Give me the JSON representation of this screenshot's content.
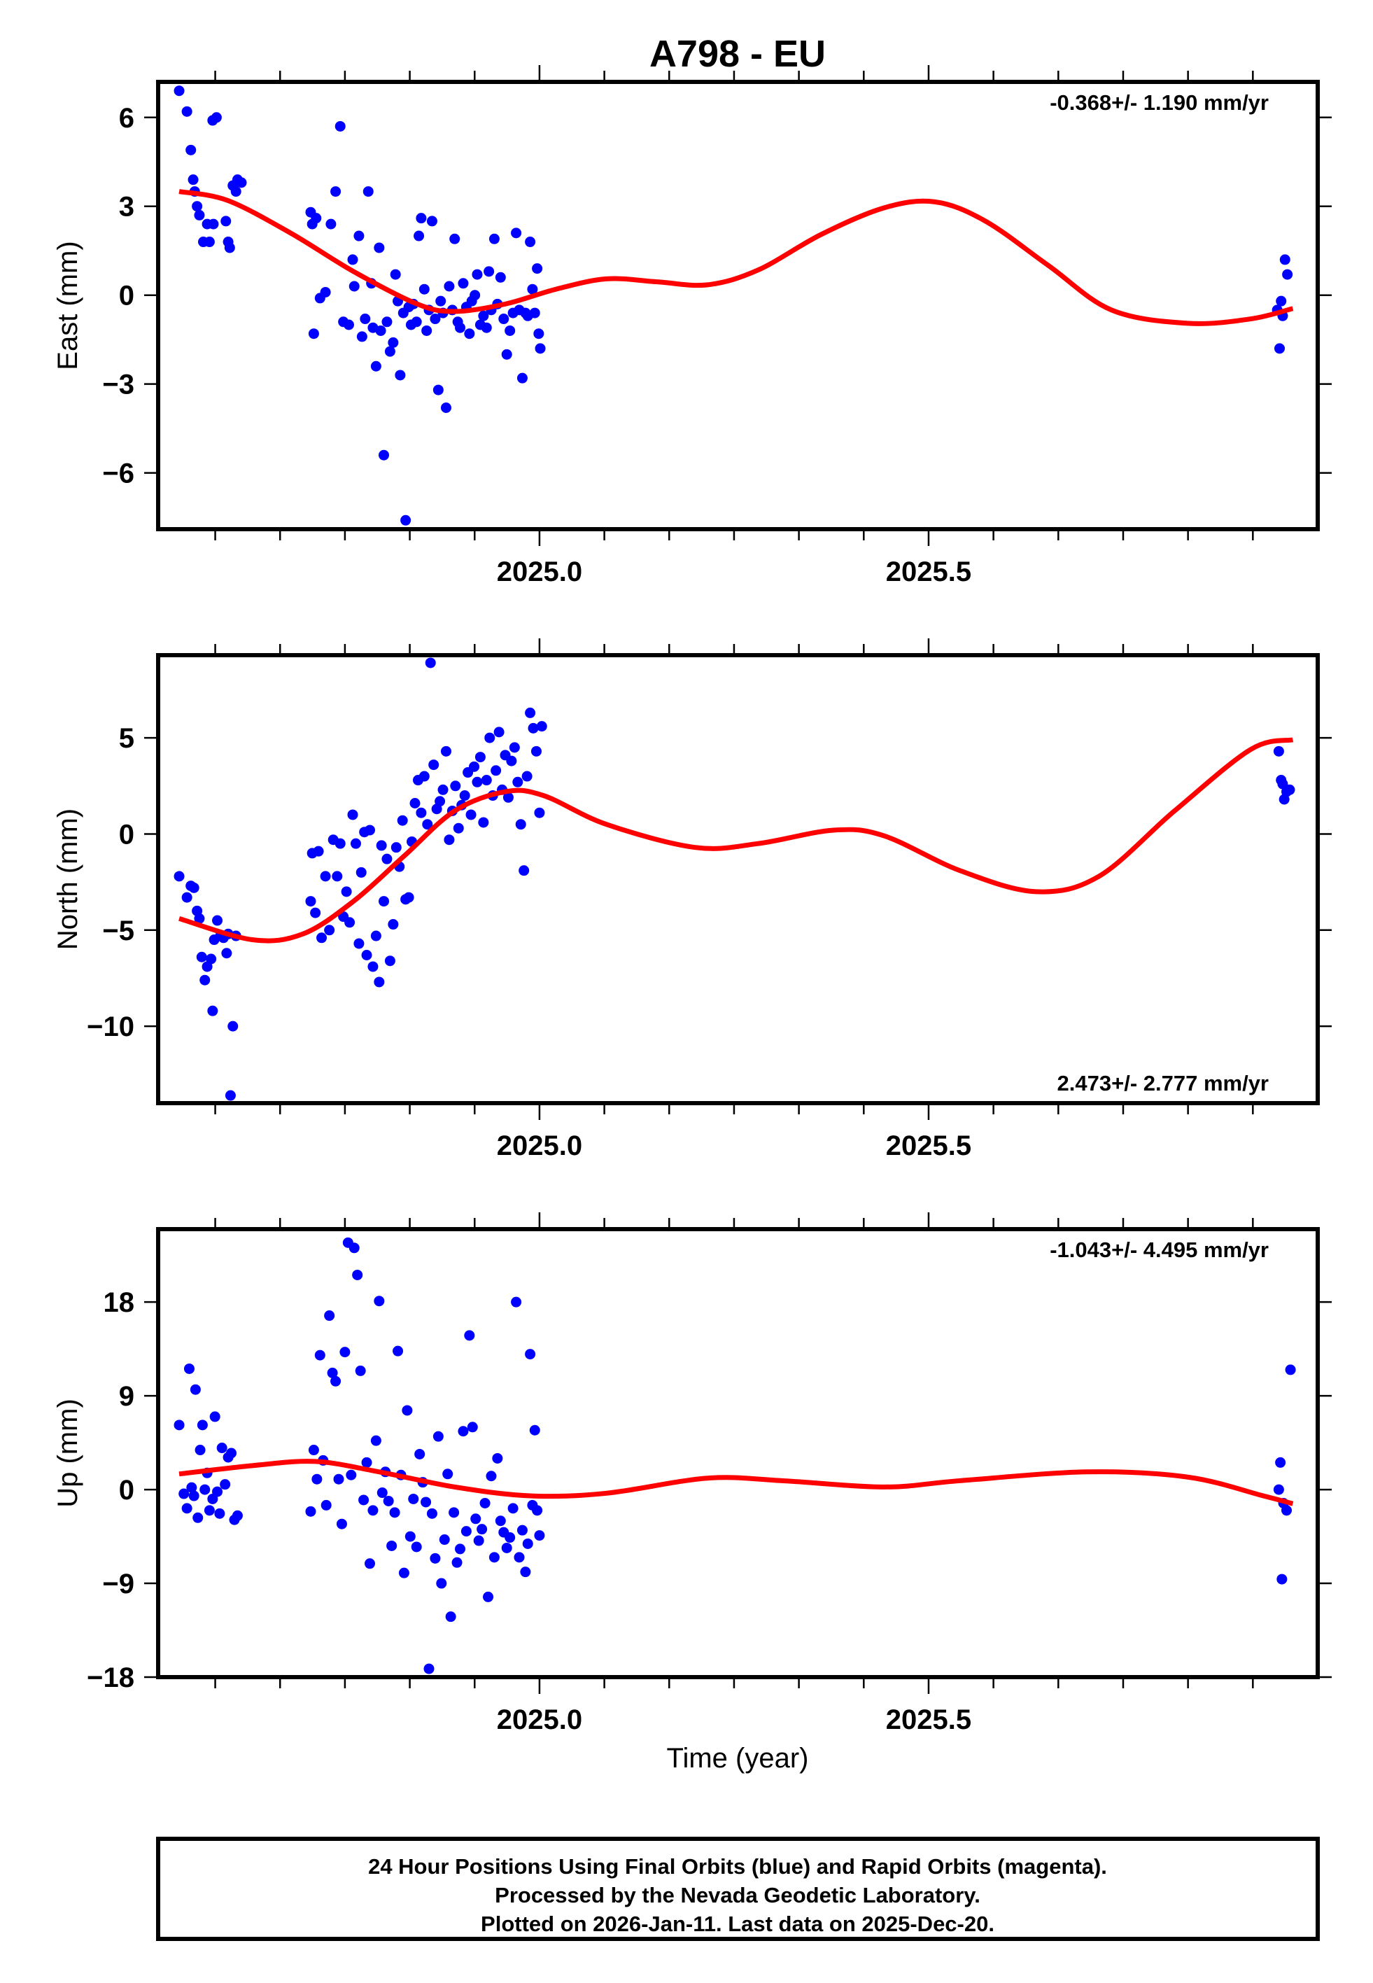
{
  "title": "A798 - EU",
  "x_axis_label": "Time (year)",
  "footer_lines": [
    "24 Hour Positions Using Final Orbits (blue) and Rapid Orbits (magenta).",
    "Processed by the Nevada Geodetic Laboratory.",
    "Plotted on 2026-Jan-11. Last data on 2025-Dec-20."
  ],
  "colors": {
    "points": "#0000ff",
    "fit": "#ff0000",
    "frame": "#000000"
  },
  "chart_data": [
    {
      "type": "scatter",
      "name": "east",
      "title": "A798 - EU",
      "xlabel": "",
      "ylabel": "East (mm)",
      "xlim": [
        2024.51,
        2026.0
      ],
      "ylim": [
        -7.9,
        7.2
      ],
      "x_ticks": [
        2025.0,
        2025.5
      ],
      "x_tick_labels": [
        "2025.0",
        "2025.5"
      ],
      "x_minor_step": 0.0833333,
      "y_ticks": [
        -6,
        -3,
        0,
        3,
        6
      ],
      "y_tick_labels": [
        "−6",
        "−3",
        "0",
        "3",
        "6"
      ],
      "rate_label": "-0.368+/- 1.190 mm/yr",
      "rate_position": "top-right",
      "grid": false,
      "series": [
        {
          "name": "Final Orbits (blue)",
          "kind": "points",
          "x": [
            2024.537,
            2024.547,
            2024.552,
            2024.555,
            2024.557,
            2024.56,
            2024.563,
            2024.568,
            2024.576,
            2024.573,
            2024.581,
            2024.58,
            2024.585,
            2024.597,
            2024.6,
            2024.602,
            2024.606,
            2024.612,
            2024.617,
            2024.61,
            2024.706,
            2024.71,
            2024.713,
            2024.708,
            2024.718,
            2024.725,
            2024.732,
            2024.738,
            2024.744,
            2024.748,
            2024.755,
            2024.76,
            2024.762,
            2024.768,
            2024.772,
            2024.776,
            2024.78,
            2024.784,
            2024.786,
            2024.79,
            2024.794,
            2024.796,
            2024.8,
            2024.804,
            2024.808,
            2024.812,
            2024.815,
            2024.818,
            2024.821,
            2024.825,
            2024.828,
            2024.832,
            2024.835,
            2024.838,
            2024.842,
            2024.845,
            2024.848,
            2024.852,
            2024.855,
            2024.858,
            2024.862,
            2024.866,
            2024.87,
            2024.873,
            2024.876,
            2024.88,
            2024.884,
            2024.888,
            2024.891,
            2024.895,
            2024.898,
            2024.902,
            2024.906,
            2024.91,
            2024.913,
            2024.917,
            2024.92,
            2024.924,
            2024.928,
            2024.932,
            2024.935,
            2024.938,
            2024.942,
            2024.946,
            2024.95,
            2024.954,
            2024.958,
            2024.962,
            2024.966,
            2024.97,
            2024.974,
            2024.978,
            2024.982,
            2024.985,
            2024.988,
            2024.991,
            2024.994,
            2024.997,
            2024.999,
            2025.001,
            2025.948,
            2025.951,
            2025.953,
            2025.955,
            2025.958,
            2025.961
          ],
          "y": [
            6.9,
            6.2,
            4.9,
            3.9,
            3.5,
            3.0,
            2.7,
            1.8,
            1.8,
            2.4,
            2.4,
            5.9,
            6.0,
            2.5,
            1.8,
            1.6,
            3.7,
            3.9,
            3.8,
            3.5,
            2.8,
            -1.3,
            2.6,
            2.4,
            -0.1,
            0.1,
            2.4,
            3.5,
            5.7,
            -0.9,
            -1.0,
            1.2,
            0.3,
            2.0,
            -1.4,
            -0.8,
            3.5,
            0.4,
            -1.1,
            -2.4,
            1.6,
            -1.2,
            -5.4,
            -0.9,
            -1.9,
            -1.6,
            0.7,
            -0.2,
            -2.7,
            -0.6,
            -7.6,
            -0.4,
            -1.0,
            -0.3,
            -0.9,
            2.0,
            2.6,
            0.2,
            -1.2,
            -0.5,
            2.5,
            -0.8,
            -3.2,
            -0.2,
            -0.6,
            -3.8,
            0.3,
            -0.5,
            1.9,
            -0.9,
            -1.1,
            0.4,
            -0.4,
            -1.3,
            -0.2,
            0.0,
            0.7,
            -1.0,
            -0.7,
            -1.1,
            0.8,
            -0.5,
            1.9,
            -0.3,
            0.6,
            -0.8,
            -2.0,
            -1.2,
            -0.6,
            2.1,
            -0.5,
            -2.8,
            -0.6,
            -0.7,
            1.8,
            0.2,
            -0.6,
            0.9,
            -1.3,
            -1.8,
            -0.5,
            -1.8,
            -0.2,
            -0.7,
            1.2,
            0.7
          ]
        },
        {
          "name": "Fit",
          "kind": "line",
          "x": [
            2024.537,
            2024.599,
            2024.68,
            2024.761,
            2024.843,
            2024.891,
            2024.956,
            2025.021,
            2025.086,
            2025.151,
            2025.216,
            2025.281,
            2025.362,
            2025.443,
            2025.508,
            2025.573,
            2025.654,
            2025.735,
            2025.833,
            2025.914,
            2025.968
          ],
          "y": [
            3.5,
            3.2,
            2.1,
            0.8,
            -0.3,
            -0.55,
            -0.3,
            0.2,
            0.55,
            0.45,
            0.35,
            0.85,
            2.05,
            2.95,
            3.15,
            2.5,
            1.0,
            -0.5,
            -0.95,
            -0.8,
            -0.45
          ]
        }
      ]
    },
    {
      "type": "scatter",
      "name": "north",
      "xlabel": "",
      "ylabel": "North (mm)",
      "xlim": [
        2024.51,
        2026.0
      ],
      "ylim": [
        -14.0,
        9.3
      ],
      "x_ticks": [
        2025.0,
        2025.5
      ],
      "x_tick_labels": [
        "2025.0",
        "2025.5"
      ],
      "x_minor_step": 0.0833333,
      "y_ticks": [
        -10,
        -5,
        0,
        5
      ],
      "y_tick_labels": [
        "−10",
        "−5",
        "0",
        "5"
      ],
      "rate_label": "2.473+/- 2.777 mm/yr",
      "rate_position": "bottom-right",
      "grid": false,
      "series": [
        {
          "name": "Final Orbits (blue)",
          "kind": "points",
          "x": [
            2024.537,
            2024.547,
            2024.552,
            2024.556,
            2024.56,
            2024.563,
            2024.566,
            2024.57,
            2024.573,
            2024.578,
            2024.58,
            2024.582,
            2024.586,
            2024.59,
            2024.594,
            2024.598,
            2024.6,
            2024.603,
            2024.606,
            2024.61,
            2024.706,
            2024.708,
            2024.712,
            2024.716,
            2024.72,
            2024.725,
            2024.73,
            2024.735,
            2024.74,
            2024.744,
            2024.748,
            2024.752,
            2024.756,
            2024.76,
            2024.764,
            2024.768,
            2024.771,
            2024.775,
            2024.778,
            2024.782,
            2024.786,
            2024.79,
            2024.794,
            2024.797,
            2024.8,
            2024.804,
            2024.808,
            2024.812,
            2024.816,
            2024.82,
            2024.824,
            2024.828,
            2024.832,
            2024.836,
            2024.84,
            2024.844,
            2024.848,
            2024.852,
            2024.856,
            2024.86,
            2024.864,
            2024.868,
            2024.872,
            2024.876,
            2024.88,
            2024.884,
            2024.888,
            2024.892,
            2024.896,
            2024.9,
            2024.904,
            2024.908,
            2024.912,
            2024.916,
            2024.92,
            2024.924,
            2024.928,
            2024.932,
            2024.936,
            2024.94,
            2024.944,
            2024.948,
            2024.952,
            2024.956,
            2024.96,
            2024.964,
            2024.968,
            2024.972,
            2024.976,
            2024.98,
            2024.984,
            2024.988,
            2024.992,
            2024.996,
            2025.0,
            2025.003,
            2025.95,
            2025.953,
            2025.955,
            2025.957,
            2025.96,
            2025.964
          ],
          "y": [
            -2.2,
            -3.3,
            -2.7,
            -2.8,
            -4.0,
            -4.4,
            -6.4,
            -7.6,
            -6.9,
            -6.5,
            -9.2,
            -5.5,
            -4.5,
            -5.3,
            -5.4,
            -6.2,
            -5.2,
            -13.6,
            -10.0,
            -5.3,
            -3.5,
            -1.0,
            -4.1,
            -0.9,
            -5.4,
            -2.2,
            -5.0,
            -0.3,
            -2.2,
            -0.5,
            -4.3,
            -3.0,
            -4.6,
            1.0,
            -0.5,
            -5.7,
            -2.0,
            0.1,
            -6.3,
            0.2,
            -6.9,
            -5.3,
            -7.7,
            -0.6,
            -3.5,
            -1.3,
            -6.6,
            -4.7,
            -0.7,
            -1.7,
            0.7,
            -3.4,
            -3.3,
            -0.4,
            1.6,
            2.8,
            1.1,
            3.0,
            0.5,
            8.9,
            3.6,
            1.3,
            1.7,
            2.3,
            4.3,
            -0.3,
            1.2,
            2.5,
            0.3,
            1.5,
            2.0,
            3.2,
            1.0,
            3.5,
            2.7,
            4.0,
            0.6,
            2.8,
            5.0,
            2.0,
            3.3,
            5.3,
            2.3,
            4.1,
            1.9,
            3.8,
            4.5,
            2.7,
            0.5,
            -1.9,
            3.0,
            6.3,
            5.5,
            4.3,
            1.1,
            5.6,
            4.3,
            2.8,
            2.6,
            1.8,
            2.2,
            2.3
          ]
        },
        {
          "name": "Fit",
          "kind": "line",
          "x": [
            2024.537,
            2024.631,
            2024.696,
            2024.761,
            2024.826,
            2024.891,
            2024.956,
            2025.005,
            2025.086,
            2025.2,
            2025.281,
            2025.378,
            2025.443,
            2025.54,
            2025.638,
            2025.719,
            2025.816,
            2025.914,
            2025.968
          ],
          "y": [
            -4.4,
            -5.5,
            -5.2,
            -3.5,
            -1.15,
            1.2,
            2.2,
            2.0,
            0.5,
            -0.7,
            -0.5,
            0.2,
            -0.1,
            -1.9,
            -3.0,
            -2.2,
            1.2,
            4.4,
            4.9
          ]
        }
      ]
    },
    {
      "type": "scatter",
      "name": "up",
      "xlabel": "Time (year)",
      "ylabel": "Up (mm)",
      "xlim": [
        2024.51,
        2026.0
      ],
      "ylim": [
        -18.0,
        25.0
      ],
      "x_ticks": [
        2025.0,
        2025.5
      ],
      "x_tick_labels": [
        "2025.0",
        "2025.5"
      ],
      "x_minor_step": 0.0833333,
      "y_ticks": [
        -18,
        -9,
        0,
        9,
        18
      ],
      "y_tick_labels": [
        "−18",
        "−9",
        "0",
        "9",
        "18"
      ],
      "rate_label": "-1.043+/- 4.495 mm/yr",
      "rate_position": "top-right",
      "grid": false,
      "series": [
        {
          "name": "Final Orbits (blue)",
          "kind": "points",
          "x": [
            2024.537,
            2024.543,
            2024.547,
            2024.55,
            2024.553,
            2024.556,
            2024.558,
            2024.561,
            2024.564,
            2024.567,
            2024.57,
            2024.573,
            2024.576,
            2024.58,
            2024.583,
            2024.586,
            2024.589,
            2024.592,
            2024.596,
            2024.6,
            2024.604,
            2024.608,
            2024.612,
            2024.706,
            2024.71,
            2024.714,
            2024.718,
            2024.722,
            2024.726,
            2024.73,
            2024.734,
            2024.738,
            2024.742,
            2024.746,
            2024.75,
            2024.754,
            2024.758,
            2024.762,
            2024.766,
            2024.77,
            2024.774,
            2024.778,
            2024.782,
            2024.786,
            2024.79,
            2024.794,
            2024.798,
            2024.802,
            2024.806,
            2024.81,
            2024.814,
            2024.818,
            2024.822,
            2024.826,
            2024.83,
            2024.834,
            2024.838,
            2024.842,
            2024.846,
            2024.85,
            2024.854,
            2024.858,
            2024.862,
            2024.866,
            2024.87,
            2024.874,
            2024.878,
            2024.882,
            2024.886,
            2024.89,
            2024.894,
            2024.898,
            2024.902,
            2024.906,
            2024.91,
            2024.914,
            2024.918,
            2024.922,
            2024.926,
            2024.93,
            2024.934,
            2024.938,
            2024.942,
            2024.946,
            2024.95,
            2024.954,
            2024.958,
            2024.962,
            2024.966,
            2024.97,
            2024.974,
            2024.978,
            2024.982,
            2024.985,
            2024.988,
            2024.991,
            2024.994,
            2024.997,
            2025.0,
            2025.95,
            2025.952,
            2025.954,
            2025.956,
            2025.96,
            2025.965
          ],
          "y": [
            6.2,
            -0.4,
            -1.8,
            11.6,
            0.2,
            -0.6,
            9.6,
            -2.7,
            3.8,
            6.2,
            0.0,
            1.6,
            -2.0,
            -0.9,
            7.0,
            -0.2,
            -2.3,
            4.0,
            0.5,
            3.1,
            3.5,
            -2.9,
            -2.5,
            -2.1,
            3.8,
            1.0,
            12.9,
            2.8,
            -1.5,
            16.7,
            11.2,
            10.4,
            1.0,
            -3.3,
            13.2,
            23.7,
            1.4,
            23.2,
            20.6,
            11.4,
            -1.0,
            2.6,
            -7.1,
            -2.0,
            4.7,
            18.1,
            -0.3,
            1.7,
            -1.1,
            -5.4,
            -2.2,
            13.3,
            1.4,
            -8.0,
            7.6,
            -4.5,
            -0.9,
            -5.5,
            3.4,
            0.7,
            -1.2,
            -17.2,
            -2.3,
            -6.6,
            5.1,
            -9.0,
            -4.8,
            1.5,
            -12.2,
            -2.2,
            -7.0,
            -5.7,
            5.6,
            -4.0,
            14.8,
            6.0,
            -2.8,
            -4.9,
            -3.8,
            -1.3,
            -10.3,
            1.3,
            -6.5,
            3.0,
            -3.0,
            -4.1,
            -5.6,
            -4.6,
            -1.8,
            18.0,
            -6.5,
            -3.9,
            -7.9,
            -5.2,
            13.0,
            -1.5,
            5.7,
            -2.0,
            -4.4,
            0.0,
            2.6,
            -8.6,
            -1.3,
            -2.0,
            11.5
          ]
        },
        {
          "name": "Fit",
          "kind": "line",
          "x": [
            2024.537,
            2024.631,
            2024.712,
            2024.794,
            2024.891,
            2024.988,
            2025.086,
            2025.216,
            2025.313,
            2025.443,
            2025.54,
            2025.703,
            2025.833,
            2025.93,
            2025.968
          ],
          "y": [
            1.5,
            2.3,
            2.7,
            1.7,
            0.25,
            -0.6,
            -0.35,
            1.1,
            0.85,
            0.25,
            0.85,
            1.7,
            1.2,
            -0.6,
            -1.35
          ]
        }
      ]
    }
  ]
}
